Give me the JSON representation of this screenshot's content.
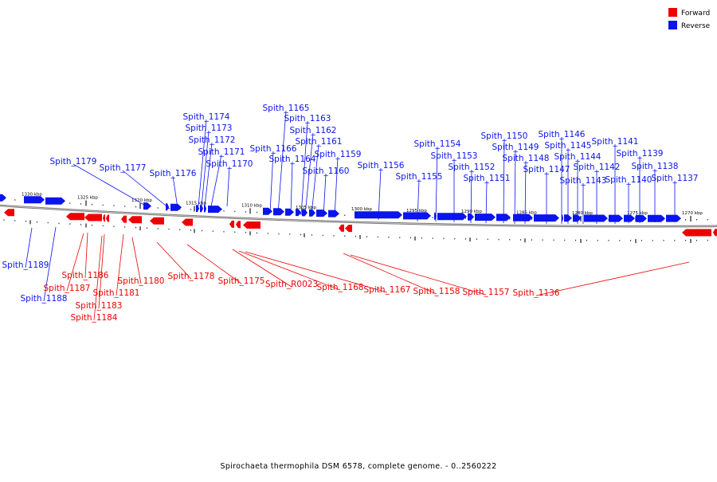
{
  "legend": {
    "forward": {
      "label": "Forward",
      "color": "#ee0000"
    },
    "reverse": {
      "label": "Reverse",
      "color": "#0a14ee"
    }
  },
  "caption": "Spirochaeta thermophila DSM 6578, complete genome. - 0..2560222",
  "colors": {
    "backbone": "#7a7a7a",
    "tick": "#000000"
  },
  "tick_labels": [
    "1330 kbp",
    "1325 kbp",
    "1320 kbp",
    "1315 kbp",
    "1310 kbp",
    "1305 kbp",
    "1300 kbp",
    "1295 kbp",
    "1290 kbp",
    "1285 kbp",
    "1280 kbp",
    "1275 kbp",
    "1270 kbp"
  ],
  "reverse_labels": [
    "Spith_1189",
    "Spith_1188",
    "Spith_1179",
    "Spith_1177",
    "Spith_1176",
    "Spith_1174",
    "Spith_1173",
    "Spith_1172",
    "Spith_1171",
    "Spith_1170",
    "Spith_1166",
    "Spith_1165",
    "Spith_1164",
    "Spith_1163",
    "Spith_1162",
    "Spith_1161",
    "Spith_1160",
    "Spith_1159",
    "Spith_1156",
    "Spith_1155",
    "Spith_1154",
    "Spith_1153",
    "Spith_1152",
    "Spith_1151",
    "Spith_1150",
    "Spith_1149",
    "Spith_1148",
    "Spith_1147",
    "Spith_1146",
    "Spith_1145",
    "Spith_1144",
    "Spith_1143",
    "Spith_1142",
    "Spith_1141",
    "Spith_1140",
    "Spith_1139",
    "Spith_1138",
    "Spith_1137"
  ],
  "forward_labels": [
    "Spith_1186",
    "Spith_1187",
    "Spith_1183",
    "Spith_1184",
    "Spith_1181",
    "Spith_1180",
    "Spith_1178",
    "Spith_1175",
    "Spith_R0023",
    "Spith_1168",
    "Spith_1167",
    "Spith_1158",
    "Spith_1157",
    "Spith_1136"
  ]
}
